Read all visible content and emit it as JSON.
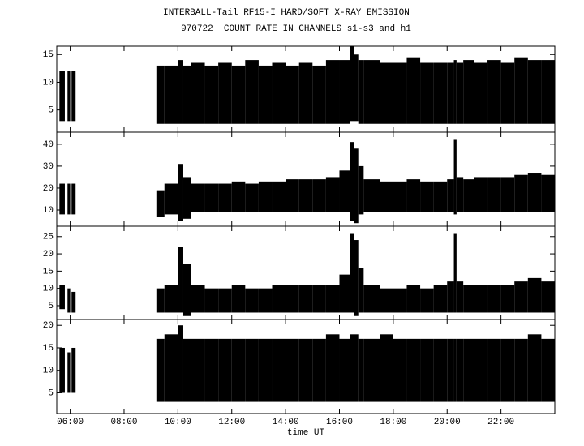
{
  "header": {
    "title": "INTERBALL-Tail RF15-I HARD/SOFT X-RAY EMISSION",
    "subtitle": "970722  COUNT RATE IN CHANNELS s1-s3 and h1"
  },
  "chart_data": [
    {
      "type": "range",
      "color": "#000000",
      "bins": [
        5.6,
        5.8,
        5.9,
        6.0,
        6.05,
        6.2,
        9.2,
        9.5,
        10,
        10.2,
        10.5,
        11,
        11.5,
        12,
        12.5,
        13,
        13.5,
        14,
        14.5,
        15,
        15.5,
        16,
        16.4,
        16.55,
        16.7,
        16.9,
        17.5,
        18,
        18.5,
        19,
        19.5,
        20,
        20.25,
        20.35,
        20.6,
        21,
        21.5,
        22,
        22.5,
        23,
        23.5,
        24
      ],
      "low": [
        3,
        null,
        3,
        null,
        3,
        null,
        2.5,
        2.5,
        2.5,
        2.5,
        2.5,
        2.5,
        2.5,
        2.5,
        2.5,
        2.5,
        2.5,
        2.5,
        2.5,
        2.5,
        2.5,
        2.5,
        3,
        3,
        2.5,
        2.5,
        2.5,
        2.5,
        2.5,
        2.5,
        2.5,
        2.5,
        2.5,
        2.5,
        2.5,
        2.5,
        2.5,
        2.5,
        2.5,
        2.5,
        2.5
      ],
      "high": [
        12,
        null,
        12,
        null,
        12,
        null,
        13,
        13,
        14,
        13,
        13.5,
        13,
        13.5,
        13,
        14,
        13,
        13.5,
        13,
        13.5,
        13,
        14,
        14,
        16.5,
        15,
        14,
        14,
        13.5,
        13.5,
        14.5,
        13.5,
        13.5,
        13.5,
        14,
        13.5,
        14,
        13.5,
        14,
        13.5,
        14.5,
        14,
        14
      ],
      "xlim": [
        5.5,
        24
      ],
      "ylim": [
        1,
        16.5
      ],
      "yticks": [
        5,
        10,
        15
      ]
    },
    {
      "type": "range",
      "color": "#000000",
      "bins": [
        5.6,
        5.8,
        5.9,
        6.0,
        6.05,
        6.2,
        9.2,
        9.5,
        10,
        10.2,
        10.5,
        11,
        11.5,
        12,
        12.5,
        13,
        13.5,
        14,
        14.5,
        15,
        15.5,
        16,
        16.4,
        16.55,
        16.7,
        16.9,
        17.5,
        18,
        18.5,
        19,
        19.5,
        20,
        20.25,
        20.35,
        20.6,
        21,
        21.5,
        22,
        22.5,
        23,
        23.5,
        24
      ],
      "low": [
        8,
        null,
        8,
        null,
        8,
        null,
        7,
        8,
        5,
        6,
        9,
        9,
        9,
        9,
        9,
        9,
        9,
        9,
        9,
        9,
        9,
        9,
        5,
        4,
        8,
        9,
        9,
        9,
        9,
        9,
        9,
        9,
        8,
        9,
        9,
        9,
        9,
        9,
        9,
        9,
        9
      ],
      "high": [
        22,
        null,
        22,
        null,
        22,
        null,
        19,
        22,
        31,
        25,
        22,
        22,
        22,
        23,
        22,
        23,
        23,
        24,
        24,
        24,
        25,
        28,
        41,
        38,
        30,
        24,
        23,
        23,
        24,
        23,
        23,
        24,
        42,
        25,
        24,
        25,
        25,
        25,
        26,
        27,
        26
      ],
      "xlim": [
        5.5,
        24
      ],
      "ylim": [
        2.6,
        45.5
      ],
      "yticks": [
        10,
        20,
        30,
        40
      ]
    },
    {
      "type": "range",
      "color": "#000000",
      "bins": [
        5.6,
        5.8,
        5.9,
        6.0,
        6.05,
        6.2,
        9.2,
        9.5,
        10,
        10.2,
        10.5,
        11,
        11.5,
        12,
        12.5,
        13,
        13.5,
        14,
        14.5,
        15,
        15.5,
        16,
        16.4,
        16.55,
        16.7,
        16.9,
        17.5,
        18,
        18.5,
        19,
        19.5,
        20,
        20.25,
        20.35,
        20.6,
        21,
        21.5,
        22,
        22.5,
        23,
        23.5,
        24
      ],
      "low": [
        4,
        null,
        3,
        null,
        3,
        null,
        3,
        3,
        3,
        2,
        3,
        3,
        3,
        3,
        3,
        3,
        3,
        3,
        3,
        3,
        3,
        3,
        3,
        2,
        3,
        3,
        3,
        3,
        3,
        3,
        3,
        3,
        3,
        3,
        3,
        3,
        3,
        3,
        3,
        3,
        3
      ],
      "high": [
        11,
        null,
        10,
        null,
        9,
        null,
        10,
        11,
        22,
        17,
        11,
        10,
        10,
        11,
        10,
        10,
        11,
        11,
        11,
        11,
        11,
        14,
        26,
        24,
        16,
        11,
        10,
        10,
        11,
        10,
        11,
        12,
        26,
        12,
        11,
        11,
        11,
        11,
        12,
        13,
        12
      ],
      "xlim": [
        5.5,
        24
      ],
      "ylim": [
        1,
        28
      ],
      "yticks": [
        5,
        10,
        15,
        20,
        25
      ]
    },
    {
      "type": "range",
      "color": "#000000",
      "bins": [
        5.6,
        5.8,
        5.9,
        6.0,
        6.05,
        6.2,
        9.2,
        9.5,
        10,
        10.2,
        10.5,
        11,
        11.5,
        12,
        12.5,
        13,
        13.5,
        14,
        14.5,
        15,
        15.5,
        16,
        16.4,
        16.55,
        16.7,
        16.9,
        17.5,
        18,
        18.5,
        19,
        19.5,
        20,
        20.25,
        20.35,
        20.6,
        21,
        21.5,
        22,
        22.5,
        23,
        23.5,
        24
      ],
      "low": [
        5,
        null,
        5,
        null,
        5,
        null,
        3,
        3,
        3,
        3,
        3,
        3,
        3,
        3,
        3,
        3,
        3,
        3,
        3,
        3,
        3,
        3,
        3,
        3,
        3,
        3,
        3,
        3,
        3,
        3,
        3,
        3,
        3,
        3,
        3,
        3,
        3,
        3,
        3,
        3,
        3
      ],
      "high": [
        15,
        null,
        14,
        null,
        15,
        null,
        17,
        18,
        20,
        17,
        17,
        17,
        17,
        17,
        17,
        17,
        17,
        17,
        17,
        17,
        18,
        17,
        18,
        18,
        17,
        17,
        18,
        17,
        17,
        17,
        17,
        17,
        17,
        17,
        17,
        17,
        17,
        17,
        17,
        18,
        17
      ],
      "xlim": [
        5.5,
        24
      ],
      "ylim": [
        0.4,
        21.3
      ],
      "yticks": [
        5,
        10,
        15,
        20
      ],
      "xlabel": "time UT",
      "xticks": [
        {
          "value": 6,
          "label": "06:00"
        },
        {
          "value": 8,
          "label": "08:00"
        },
        {
          "value": 10,
          "label": "10:00"
        },
        {
          "value": 12,
          "label": "12:00"
        },
        {
          "value": 14,
          "label": "14:00"
        },
        {
          "value": 16,
          "label": "16:00"
        },
        {
          "value": 18,
          "label": "18:00"
        },
        {
          "value": 20,
          "label": "20:00"
        },
        {
          "value": 22,
          "label": "22:00"
        }
      ]
    }
  ]
}
